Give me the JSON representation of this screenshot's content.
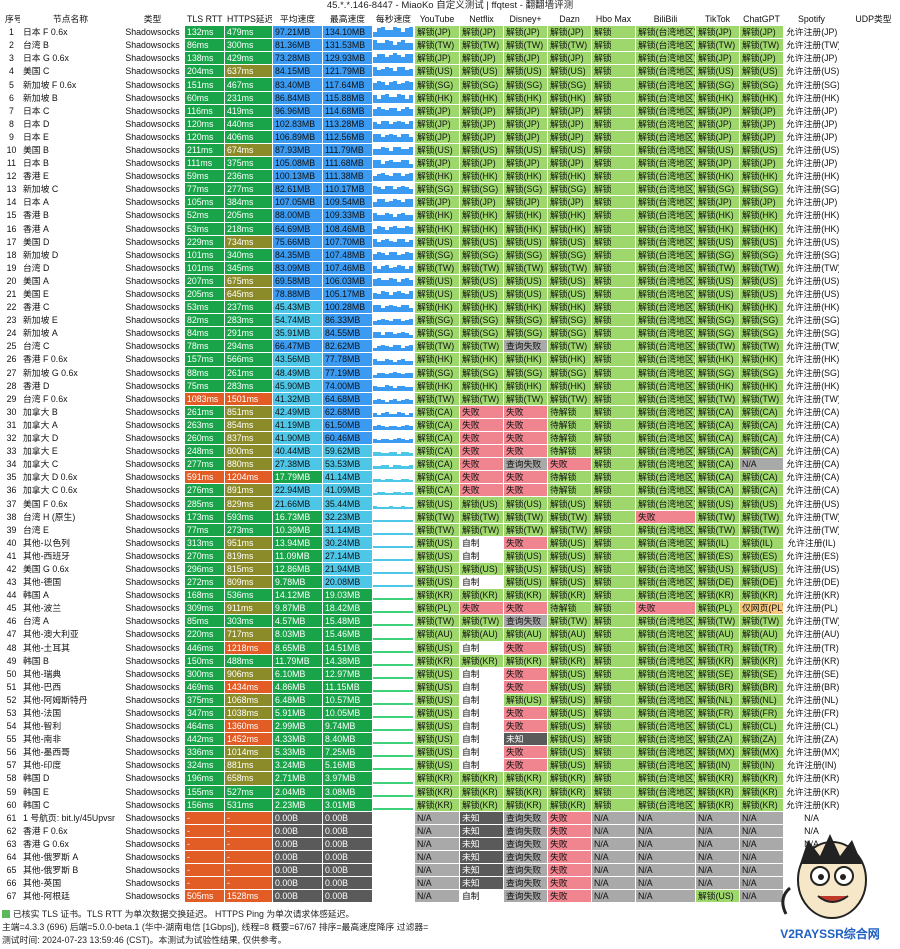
{
  "title": "45.*.*.146-8447 - MiaoKo 自定义测试 | ffqtest - 翻翻墙评测",
  "headers": [
    "序号",
    "节点名称",
    "类型",
    "TLS RTT",
    "HTTPS延迟",
    "平均速度",
    "最高速度",
    "每秒速度",
    "YouTube",
    "Netflix",
    "Disney+",
    "Dazn",
    "Hbo Max",
    "BiliBili",
    "TikTok",
    "ChatGPT",
    "Spotify",
    "UDP类型"
  ],
  "rows": [
    [
      "1",
      "日本 F 0.6x",
      "Shadowsocks",
      "132ms",
      "479ms",
      "97.21MB",
      "134.10MB",
      "解锁(JP)",
      "解锁(JP)",
      "解锁(JP)",
      "解锁(JP)",
      "解锁",
      "解锁(台湾地区)",
      "解锁(JP)",
      "解锁(JP)",
      "允许注册(JP)",
      "FullCone"
    ],
    [
      "2",
      "台湾 B",
      "Shadowsocks",
      "86ms",
      "300ms",
      "81.36MB",
      "131.53MB",
      "解锁(TW)",
      "解锁(TW)",
      "解锁(TW)",
      "解锁(TW)",
      "解锁",
      "解锁(台湾地区)",
      "解锁(TW)",
      "解锁(TW)",
      "允许注册(TW)",
      "FullCone"
    ],
    [
      "3",
      "日本 G 0.6x",
      "Shadowsocks",
      "138ms",
      "429ms",
      "73.28MB",
      "129.93MB",
      "解锁(JP)",
      "解锁(JP)",
      "解锁(JP)",
      "解锁(JP)",
      "解锁",
      "解锁(台湾地区)",
      "解锁(JP)",
      "解锁(JP)",
      "允许注册(JP)",
      "FullCone"
    ],
    [
      "4",
      "美国 C",
      "Shadowsocks",
      "204ms",
      "637ms",
      "84.15MB",
      "121.79MB",
      "解锁(US)",
      "解锁(US)",
      "解锁(US)",
      "解锁(US)",
      "解锁",
      "解锁(台湾地区)",
      "解锁(US)",
      "解锁(US)",
      "允许注册(US)",
      "FullCone"
    ],
    [
      "5",
      "新加坡 F 0.6x",
      "Shadowsocks",
      "151ms",
      "467ms",
      "83.40MB",
      "117.64MB",
      "解锁(SG)",
      "解锁(SG)",
      "解锁(SG)",
      "解锁(SG)",
      "解锁",
      "解锁(台湾地区)",
      "解锁(SG)",
      "解锁(SG)",
      "允许注册(SG)",
      "FullCone"
    ],
    [
      "6",
      "新加坡 B",
      "Shadowsocks",
      "60ms",
      "231ms",
      "86.84MB",
      "115.88MB",
      "解锁(HK)",
      "解锁(HK)",
      "解锁(HK)",
      "解锁(HK)",
      "解锁",
      "解锁(台湾地区)",
      "解锁(HK)",
      "解锁(HK)",
      "允许注册(HK)",
      "FullCone"
    ],
    [
      "7",
      "日本 C",
      "Shadowsocks",
      "116ms",
      "419ms",
      "96.96MB",
      "114.68MB",
      "解锁(JP)",
      "解锁(JP)",
      "解锁(JP)",
      "解锁(JP)",
      "解锁",
      "解锁(台湾地区)",
      "解锁(JP)",
      "解锁(JP)",
      "允许注册(JP)",
      "SymmetricFirewall"
    ],
    [
      "8",
      "日本 D",
      "Shadowsocks",
      "120ms",
      "440ms",
      "102.83MB",
      "113.28MB",
      "解锁(JP)",
      "解锁(JP)",
      "解锁(JP)",
      "解锁(JP)",
      "解锁",
      "解锁(台湾地区)",
      "解锁(JP)",
      "解锁(JP)",
      "允许注册(JP)",
      "SymmetricFirewall"
    ],
    [
      "9",
      "日本 E",
      "Shadowsocks",
      "120ms",
      "406ms",
      "106.89MB",
      "112.56MB",
      "解锁(JP)",
      "解锁(JP)",
      "解锁(JP)",
      "解锁(JP)",
      "解锁",
      "解锁(台湾地区)",
      "解锁(JP)",
      "解锁(JP)",
      "允许注册(JP)",
      "Unknown"
    ],
    [
      "10",
      "美国 B",
      "Shadowsocks",
      "211ms",
      "674ms",
      "87.93MB",
      "111.79MB",
      "解锁(US)",
      "解锁(US)",
      "解锁(US)",
      "解锁(US)",
      "解锁",
      "解锁(台湾地区)",
      "解锁(US)",
      "解锁(US)",
      "允许注册(US)",
      "FullCone"
    ],
    [
      "11",
      "日本 B",
      "Shadowsocks",
      "111ms",
      "375ms",
      "105.08MB",
      "111.68MB",
      "解锁(JP)",
      "解锁(JP)",
      "解锁(JP)",
      "解锁(JP)",
      "解锁",
      "解锁(台湾地区)",
      "解锁(JP)",
      "解锁(JP)",
      "允许注册(JP)",
      "SymmetricFirewall"
    ],
    [
      "12",
      "香港 E",
      "Shadowsocks",
      "59ms",
      "236ms",
      "100.13MB",
      "111.38MB",
      "解锁(HK)",
      "解锁(HK)",
      "解锁(HK)",
      "解锁(HK)",
      "解锁",
      "解锁(台湾地区)",
      "解锁(HK)",
      "解锁(HK)",
      "允许注册(HK)",
      "FullCone"
    ],
    [
      "13",
      "新加坡 C",
      "Shadowsocks",
      "77ms",
      "277ms",
      "82.61MB",
      "110.17MB",
      "解锁(SG)",
      "解锁(SG)",
      "解锁(SG)",
      "解锁(SG)",
      "解锁",
      "解锁(台湾地区)",
      "解锁(SG)",
      "解锁(SG)",
      "允许注册(SG)",
      "SymmetricFirewall"
    ],
    [
      "14",
      "日本 A",
      "Shadowsocks",
      "105ms",
      "384ms",
      "107.05MB",
      "109.54MB",
      "解锁(JP)",
      "解锁(JP)",
      "解锁(JP)",
      "解锁(JP)",
      "解锁",
      "解锁(台湾地区)",
      "解锁(JP)",
      "解锁(JP)",
      "允许注册(JP)",
      "FullCone"
    ],
    [
      "15",
      "香港 B",
      "Shadowsocks",
      "52ms",
      "205ms",
      "88.00MB",
      "109.33MB",
      "解锁(HK)",
      "解锁(HK)",
      "解锁(HK)",
      "解锁(HK)",
      "解锁",
      "解锁(台湾地区)",
      "解锁(HK)",
      "解锁(HK)",
      "允许注册(HK)",
      "FullCone"
    ],
    [
      "16",
      "香港 A",
      "Shadowsocks",
      "53ms",
      "218ms",
      "64.69MB",
      "108.46MB",
      "解锁(HK)",
      "解锁(HK)",
      "解锁(HK)",
      "解锁(HK)",
      "解锁",
      "解锁(台湾地区)",
      "解锁(HK)",
      "解锁(HK)",
      "允许注册(HK)",
      "FullCone"
    ],
    [
      "17",
      "美国 D",
      "Shadowsocks",
      "229ms",
      "734ms",
      "75.66MB",
      "107.70MB",
      "解锁(US)",
      "解锁(US)",
      "解锁(US)",
      "解锁(US)",
      "解锁",
      "解锁(台湾地区)",
      "解锁(US)",
      "解锁(US)",
      "允许注册(US)",
      "Unknown"
    ],
    [
      "18",
      "新加坡 D",
      "Shadowsocks",
      "101ms",
      "340ms",
      "84.35MB",
      "107.48MB",
      "解锁(SG)",
      "解锁(SG)",
      "解锁(SG)",
      "解锁(SG)",
      "解锁",
      "解锁(台湾地区)",
      "解锁(SG)",
      "解锁(SG)",
      "允许注册(SG)",
      "FullCone"
    ],
    [
      "19",
      "台湾 D",
      "Shadowsocks",
      "101ms",
      "345ms",
      "83.09MB",
      "107.46MB",
      "解锁(TW)",
      "解锁(TW)",
      "解锁(TW)",
      "解锁(TW)",
      "解锁",
      "解锁(台湾地区)",
      "解锁(TW)",
      "解锁(TW)",
      "允许注册(TW)",
      "SymmetricFirewall"
    ],
    [
      "20",
      "美国 A",
      "Shadowsocks",
      "207ms",
      "675ms",
      "69.58MB",
      "106.03MB",
      "解锁(US)",
      "解锁(US)",
      "解锁(US)",
      "解锁(US)",
      "解锁",
      "解锁(台湾地区)",
      "解锁(US)",
      "解锁(US)",
      "允许注册(US)",
      "FullCone"
    ],
    [
      "21",
      "美国 E",
      "Shadowsocks",
      "205ms",
      "645ms",
      "78.88MB",
      "105.17MB",
      "解锁(US)",
      "解锁(US)",
      "解锁(US)",
      "解锁(US)",
      "解锁",
      "解锁(台湾地区)",
      "解锁(US)",
      "解锁(US)",
      "允许注册(US)",
      "FullCone"
    ],
    [
      "22",
      "香港 C",
      "Shadowsocks",
      "53ms",
      "237ms",
      "45.43MB",
      "100.28MB",
      "解锁(HK)",
      "解锁(HK)",
      "解锁(HK)",
      "解锁(HK)",
      "解锁",
      "解锁(台湾地区)",
      "解锁(HK)",
      "解锁(HK)",
      "允许注册(HK)",
      "FullCone"
    ],
    [
      "23",
      "新加坡 E",
      "Shadowsocks",
      "82ms",
      "283ms",
      "54.74MB",
      "86.33MB",
      "解锁(SG)",
      "解锁(SG)",
      "解锁(SG)",
      "解锁(SG)",
      "解锁",
      "解锁(台湾地区)",
      "解锁(SG)",
      "解锁(SG)",
      "允许注册(SG)",
      "Unknown"
    ],
    [
      "24",
      "新加坡 A",
      "Shadowsocks",
      "84ms",
      "291ms",
      "35.91MB",
      "84.55MB",
      "解锁(SG)",
      "解锁(SG)",
      "解锁(SG)",
      "解锁(SG)",
      "解锁",
      "解锁(台湾地区)",
      "解锁(SG)",
      "解锁(SG)",
      "允许注册(SG)",
      "SymmetricFirewall"
    ],
    [
      "25",
      "台湾 C",
      "Shadowsocks",
      "78ms",
      "294ms",
      "66.47MB",
      "82.62MB",
      "解锁(TW)",
      "解锁(TW)",
      "查询失败",
      "解锁(TW)",
      "解锁",
      "解锁(台湾地区)",
      "解锁(TW)",
      "解锁(TW)",
      "允许注册(TW)",
      "SymmetricFirewall"
    ],
    [
      "26",
      "香港 F 0.6x",
      "Shadowsocks",
      "157ms",
      "566ms",
      "43.56MB",
      "77.78MB",
      "解锁(HK)",
      "解锁(HK)",
      "解锁(HK)",
      "解锁(HK)",
      "解锁",
      "解锁(台湾地区)",
      "解锁(HK)",
      "解锁(HK)",
      "允许注册(HK)",
      "FullCone"
    ],
    [
      "27",
      "新加坡 G 0.6x",
      "Shadowsocks",
      "88ms",
      "261ms",
      "48.49MB",
      "77.19MB",
      "解锁(SG)",
      "解锁(SG)",
      "解锁(SG)",
      "解锁(SG)",
      "解锁",
      "解锁(台湾地区)",
      "解锁(SG)",
      "解锁(SG)",
      "允许注册(SG)",
      "FullCone"
    ],
    [
      "28",
      "香港 D",
      "Shadowsocks",
      "75ms",
      "283ms",
      "45.90MB",
      "74.00MB",
      "解锁(HK)",
      "解锁(HK)",
      "解锁(HK)",
      "解锁(HK)",
      "解锁",
      "解锁(台湾地区)",
      "解锁(HK)",
      "解锁(HK)",
      "允许注册(HK)",
      "FullCone"
    ],
    [
      "29",
      "台湾 F 0.6x",
      "Shadowsocks",
      "1083ms",
      "1501ms",
      "41.32MB",
      "64.68MB",
      "解锁(TW)",
      "解锁(TW)",
      "解锁(TW)",
      "解锁(TW)",
      "解锁",
      "解锁(台湾地区)",
      "解锁(TW)",
      "解锁(TW)",
      "允许注册(TW)",
      "FullCone"
    ],
    [
      "30",
      "加拿大 B",
      "Shadowsocks",
      "261ms",
      "851ms",
      "42.49MB",
      "62.68MB",
      "解锁(CA)",
      "失败",
      "失败",
      "待解锁",
      "解锁",
      "解锁(台湾地区)",
      "解锁(CA)",
      "解锁(CA)",
      "允许注册(CA)",
      "FullCone"
    ],
    [
      "31",
      "加拿大 A",
      "Shadowsocks",
      "263ms",
      "854ms",
      "41.19MB",
      "61.50MB",
      "解锁(CA)",
      "失败",
      "失败",
      "待解锁",
      "解锁",
      "解锁(台湾地区)",
      "解锁(CA)",
      "解锁(CA)",
      "允许注册(CA)",
      "FullCone"
    ],
    [
      "32",
      "加拿大 D",
      "Shadowsocks",
      "260ms",
      "837ms",
      "41.90MB",
      "60.46MB",
      "解锁(CA)",
      "失败",
      "失败",
      "待解锁",
      "解锁",
      "解锁(台湾地区)",
      "解锁(CA)",
      "解锁(CA)",
      "允许注册(CA)",
      "FullCone"
    ],
    [
      "33",
      "加拿大 E",
      "Shadowsocks",
      "248ms",
      "800ms",
      "40.44MB",
      "59.62MB",
      "解锁(CA)",
      "失败",
      "失败",
      "待解锁",
      "解锁",
      "解锁(台湾地区)",
      "解锁(CA)",
      "解锁(CA)",
      "允许注册(CA)",
      "FullCone"
    ],
    [
      "34",
      "加拿大 C",
      "Shadowsocks",
      "277ms",
      "880ms",
      "27.38MB",
      "53.53MB",
      "解锁(CA)",
      "失败",
      "查询失败",
      "失败",
      "解锁",
      "解锁(台湾地区)",
      "解锁(CA)",
      "N/A",
      "允许注册(CA)",
      "FullCone"
    ],
    [
      "35",
      "加拿大 D 0.6x",
      "Shadowsocks",
      "591ms",
      "1204ms",
      "17.79MB",
      "41.14MB",
      "解锁(CA)",
      "失败",
      "失败",
      "待解锁",
      "解锁",
      "解锁(台湾地区)",
      "解锁(CA)",
      "解锁(CA)",
      "允许注册(CA)",
      "FullCone"
    ],
    [
      "36",
      "加拿大 C 0.6x",
      "Shadowsocks",
      "276ms",
      "891ms",
      "22.94MB",
      "41.09MB",
      "解锁(CA)",
      "失败",
      "失败",
      "待解锁",
      "解锁",
      "解锁(台湾地区)",
      "解锁(CA)",
      "解锁(CA)",
      "允许注册(CA)",
      "FullCone"
    ],
    [
      "37",
      "美国 F 0.6x",
      "Shadowsocks",
      "285ms",
      "829ms",
      "21.66MB",
      "35.44MB",
      "解锁(US)",
      "解锁(US)",
      "解锁(US)",
      "解锁(US)",
      "解锁",
      "解锁(台湾地区)",
      "解锁(US)",
      "解锁(US)",
      "允许注册(US)",
      "FullCone"
    ],
    [
      "38",
      "台湾 H (原生)",
      "Shadowsocks",
      "173ms",
      "593ms",
      "16.73MB",
      "32.23MB",
      "解锁(TW)",
      "解锁(TW)",
      "解锁(TW)",
      "解锁(TW)",
      "解锁",
      "失败",
      "解锁(TW)",
      "解锁(TW)",
      "允许注册(TW)",
      "FullCone"
    ],
    [
      "39",
      "台湾 E",
      "Shadowsocks",
      "77ms",
      "273ms",
      "10.39MB",
      "31.14MB",
      "解锁(TW)",
      "解锁(TW)",
      "解锁(TW)",
      "解锁(TW)",
      "解锁",
      "解锁(台湾地区)",
      "解锁(TW)",
      "解锁(TW)",
      "允许注册(TW)",
      "FullCone"
    ],
    [
      "40",
      "其他-以色列",
      "Shadowsocks",
      "313ms",
      "951ms",
      "13.94MB",
      "30.24MB",
      "解锁(US)",
      "自制",
      "失败",
      "解锁(US)",
      "解锁",
      "解锁(台湾地区)",
      "解锁(IL)",
      "解锁(IL)",
      "允许注册(IL)",
      "FullCone"
    ],
    [
      "41",
      "其他-西班牙",
      "Shadowsocks",
      "270ms",
      "819ms",
      "11.09MB",
      "27.14MB",
      "解锁(US)",
      "自制",
      "解锁(US)",
      "解锁(US)",
      "解锁",
      "解锁(台湾地区)",
      "解锁(ES)",
      "解锁(ES)",
      "允许注册(ES)",
      "FullCone"
    ],
    [
      "42",
      "美国 G 0.6x",
      "Shadowsocks",
      "296ms",
      "815ms",
      "12.86MB",
      "21.94MB",
      "解锁(US)",
      "解锁(US)",
      "解锁(US)",
      "解锁(US)",
      "解锁",
      "解锁(台湾地区)",
      "解锁(US)",
      "解锁(US)",
      "允许注册(US)",
      "FullCone"
    ],
    [
      "43",
      "其他-德国",
      "Shadowsocks",
      "272ms",
      "809ms",
      "9.78MB",
      "20.08MB",
      "解锁(US)",
      "自制",
      "解锁(US)",
      "解锁(US)",
      "解锁",
      "解锁(台湾地区)",
      "解锁(DE)",
      "解锁(DE)",
      "允许注册(DE)",
      "FullCone"
    ],
    [
      "44",
      "韩国 A",
      "Shadowsocks",
      "168ms",
      "536ms",
      "14.12MB",
      "19.03MB",
      "解锁(KR)",
      "解锁(KR)",
      "解锁(KR)",
      "解锁(KR)",
      "解锁",
      "解锁(台湾地区)",
      "解锁(KR)",
      "解锁(KR)",
      "允许注册(KR)",
      "FullCone"
    ],
    [
      "45",
      "其他-波兰",
      "Shadowsocks",
      "309ms",
      "911ms",
      "9.87MB",
      "18.42MB",
      "解锁(PL)",
      "失败",
      "失败",
      "待解锁",
      "解锁",
      "失败",
      "解锁(PL)",
      "仅网页(PL)",
      "允许注册(PL)",
      "FullCone"
    ],
    [
      "46",
      "台湾 A",
      "Shadowsocks",
      "85ms",
      "303ms",
      "4.57MB",
      "15.48MB",
      "解锁(TW)",
      "解锁(TW)",
      "查询失败",
      "解锁(TW)",
      "解锁",
      "解锁(台湾地区)",
      "解锁(TW)",
      "解锁(TW)",
      "允许注册(TW)",
      "Unknown"
    ],
    [
      "47",
      "其他-澳大利亚",
      "Shadowsocks",
      "220ms",
      "717ms",
      "8.03MB",
      "15.46MB",
      "解锁(AU)",
      "解锁(AU)",
      "解锁(AU)",
      "解锁(AU)",
      "解锁",
      "解锁(台湾地区)",
      "解锁(AU)",
      "解锁(AU)",
      "允许注册(AU)",
      "FullCone"
    ],
    [
      "48",
      "其他-土耳其",
      "Shadowsocks",
      "446ms",
      "1218ms",
      "8.65MB",
      "14.51MB",
      "解锁(US)",
      "自制",
      "失败",
      "解锁(US)",
      "解锁",
      "解锁(台湾地区)",
      "解锁(TR)",
      "解锁(TR)",
      "允许注册(TR)",
      "FullCone"
    ],
    [
      "49",
      "韩国 B",
      "Shadowsocks",
      "150ms",
      "488ms",
      "11.79MB",
      "14.38MB",
      "解锁(KR)",
      "解锁(KR)",
      "解锁(KR)",
      "解锁(KR)",
      "解锁",
      "解锁(台湾地区)",
      "解锁(KR)",
      "解锁(KR)",
      "允许注册(KR)",
      "FullCone"
    ],
    [
      "50",
      "其他-瑞典",
      "Shadowsocks",
      "300ms",
      "906ms",
      "6.10MB",
      "12.97MB",
      "解锁(US)",
      "自制",
      "失败",
      "解锁(US)",
      "解锁",
      "解锁(台湾地区)",
      "解锁(SE)",
      "解锁(SE)",
      "允许注册(SE)",
      "FullCone"
    ],
    [
      "51",
      "其他-巴西",
      "Shadowsocks",
      "469ms",
      "1434ms",
      "4.86MB",
      "11.15MB",
      "解锁(US)",
      "自制",
      "失败",
      "解锁(US)",
      "解锁",
      "解锁(台湾地区)",
      "解锁(BR)",
      "解锁(BR)",
      "允许注册(BR)",
      "FullCone"
    ],
    [
      "52",
      "其他-阿姆斯特丹",
      "Shadowsocks",
      "375ms",
      "1068ms",
      "6.48MB",
      "10.57MB",
      "解锁(US)",
      "自制",
      "解锁(US)",
      "解锁(US)",
      "解锁",
      "解锁(台湾地区)",
      "解锁(NL)",
      "解锁(NL)",
      "允许注册(NL)",
      "FullCone"
    ],
    [
      "53",
      "其他-法国",
      "Shadowsocks",
      "347ms",
      "1038ms",
      "5.91MB",
      "10.05MB",
      "解锁(US)",
      "自制",
      "失败",
      "解锁(US)",
      "解锁",
      "解锁(台湾地区)",
      "解锁(FR)",
      "解锁(FR)",
      "允许注册(FR)",
      "FullCone"
    ],
    [
      "54",
      "其他-智利",
      "Shadowsocks",
      "464ms",
      "1360ms",
      "2.99MB",
      "9.74MB",
      "解锁(US)",
      "自制",
      "失败",
      "解锁(US)",
      "解锁",
      "解锁(台湾地区)",
      "解锁(CL)",
      "解锁(CL)",
      "允许注册(CL)",
      "FullCone"
    ],
    [
      "55",
      "其他-南非",
      "Shadowsocks",
      "442ms",
      "1452ms",
      "4.33MB",
      "8.40MB",
      "解锁(US)",
      "自制",
      "未知",
      "解锁(US)",
      "解锁",
      "解锁(台湾地区)",
      "解锁(ZA)",
      "解锁(ZA)",
      "允许注册(ZA)",
      "FullCone"
    ],
    [
      "56",
      "其他-墨西哥",
      "Shadowsocks",
      "336ms",
      "1014ms",
      "5.33MB",
      "7.25MB",
      "解锁(US)",
      "自制",
      "失败",
      "解锁(US)",
      "解锁",
      "解锁(台湾地区)",
      "解锁(MX)",
      "解锁(MX)",
      "允许注册(MX)",
      "FullCone"
    ],
    [
      "57",
      "其他-印度",
      "Shadowsocks",
      "324ms",
      "881ms",
      "3.24MB",
      "5.16MB",
      "解锁(US)",
      "自制",
      "失败",
      "解锁(US)",
      "解锁",
      "解锁(台湾地区)",
      "解锁(IN)",
      "解锁(IN)",
      "允许注册(IN)",
      "FullCone"
    ],
    [
      "58",
      "韩国 D",
      "Shadowsocks",
      "196ms",
      "658ms",
      "2.71MB",
      "3.97MB",
      "解锁(KR)",
      "解锁(KR)",
      "解锁(KR)",
      "解锁(KR)",
      "解锁",
      "解锁(台湾地区)",
      "解锁(KR)",
      "解锁(KR)",
      "允许注册(KR)",
      "FullCone"
    ],
    [
      "59",
      "韩国 E",
      "Shadowsocks",
      "155ms",
      "527ms",
      "2.04MB",
      "3.08MB",
      "解锁(KR)",
      "解锁(KR)",
      "解锁(KR)",
      "解锁(KR)",
      "解锁",
      "解锁(台湾地区)",
      "解锁(KR)",
      "解锁(KR)",
      "允许注册(KR)",
      "FullCone"
    ],
    [
      "60",
      "韩国 C",
      "Shadowsocks",
      "156ms",
      "531ms",
      "2.23MB",
      "3.01MB",
      "解锁(KR)",
      "解锁(KR)",
      "解锁(KR)",
      "解锁(KR)",
      "解锁",
      "解锁(台湾地区)",
      "解锁(KR)",
      "解锁(KR)",
      "允许注册(KR)",
      "FullCone"
    ],
    [
      "61",
      "1 号航页: bit.ly/45Upvsr",
      "Shadowsocks",
      "-",
      "-",
      "0.00B",
      "0.00B",
      "N/A",
      "未知",
      "查询失败",
      "失败",
      "N/A",
      "N/A",
      "N/A",
      "N/A",
      "N/A",
      "Unknown"
    ],
    [
      "62",
      "香港 F 0.6x",
      "Shadowsocks",
      "-",
      "-",
      "0.00B",
      "0.00B",
      "N/A",
      "未知",
      "查询失败",
      "失败",
      "N/A",
      "N/A",
      "N/A",
      "N/A",
      "N/A",
      "Unknown"
    ],
    [
      "63",
      "香港 G 0.6x",
      "Shadowsocks",
      "-",
      "-",
      "0.00B",
      "0.00B",
      "N/A",
      "未知",
      "查询失败",
      "失败",
      "N/A",
      "N/A",
      "N/A",
      "N/A",
      "N/A",
      "Unknown"
    ],
    [
      "64",
      "其他-俄罗斯 A",
      "Shadowsocks",
      "-",
      "-",
      "0.00B",
      "0.00B",
      "N/A",
      "未知",
      "查询失败",
      "失败",
      "N/A",
      "N/A",
      "N/A",
      "N/A",
      "N/A",
      "Unknown"
    ],
    [
      "65",
      "其他-俄罗斯 B",
      "Shadowsocks",
      "-",
      "-",
      "0.00B",
      "0.00B",
      "N/A",
      "未知",
      "查询失败",
      "失败",
      "N/A",
      "N/A",
      "N/A",
      "N/A",
      "N/A",
      "Unknown"
    ],
    [
      "66",
      "其他-英国",
      "Shadowsocks",
      "-",
      "-",
      "0.00B",
      "0.00B",
      "N/A",
      "未知",
      "查询失败",
      "失败",
      "N/A",
      "N/A",
      "N/A",
      "N/A",
      "N/A",
      "Unknown"
    ],
    [
      "67",
      "其他-阿根廷",
      "Shadowsocks",
      "505ms",
      "1528ms",
      "0.00B",
      "0.00B",
      "N/A",
      "自制",
      "查询失败",
      "失败",
      "N/A",
      "N/A",
      "解锁(US)",
      "N/A",
      "N/A",
      "Unknown"
    ]
  ],
  "footer": {
    "line1": "已核实 TLS 证书。TLS RTT 为单次数据交换延迟。 HTTPS Ping 为单次请求体感延迟。",
    "line2": "主端=4.3.3 (696) 后端=5.0.0-beta.1 (华中-湖南电信 [1Gbps]), 线程=8 概要=67/67 排序=最高速度降序 过滤器=",
    "line3": "测试时间: 2024-07-23 13:59:46 (CST)。本测试为试验性结果, 仅供参考。"
  },
  "logo": {
    "text": "V2RAYSSR综合网"
  },
  "colors": {
    "unlock": "#9ed86d",
    "fail": "#f0848f",
    "na": "#a9a9a9",
    "speed": "#3b9bf3",
    "gray": "#5a5a5a"
  }
}
